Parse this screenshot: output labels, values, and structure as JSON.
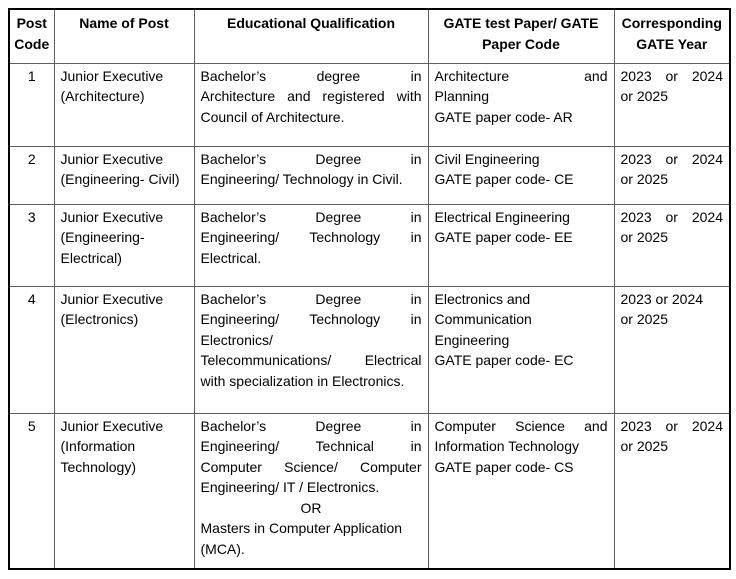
{
  "colors": {
    "border_inner": "#5f5f5f",
    "border_outer": "#000000",
    "text": "#000000",
    "background": "#ffffff"
  },
  "table": {
    "headers": [
      "Post Code",
      "Name of Post",
      "Educational Qualification",
      "GATE test Paper/ GATE Paper Code",
      "Corresponding GATE Year"
    ],
    "rows": [
      {
        "code": "1",
        "name": [
          {
            "t": "Junior Executive"
          },
          {
            "t": "(Architecture)"
          }
        ],
        "qualification": [
          {
            "t": "Bachelor’s degree in",
            "j": true
          },
          {
            "t": "Architecture and registered with",
            "j": true
          },
          {
            "t": "Council of Architecture."
          }
        ],
        "gate": [
          {
            "t": "Architecture and",
            "j": true
          },
          {
            "t": "Planning"
          },
          {
            "t": "GATE paper code- AR"
          }
        ],
        "year": [
          {
            "t": "2023 or 2024",
            "j": true
          },
          {
            "t": "or 2025"
          }
        ]
      },
      {
        "code": "2",
        "name": [
          {
            "t": "Junior Executive"
          },
          {
            "t": "(Engineering- Civil)"
          }
        ],
        "qualification": [
          {
            "t": "Bachelor’s Degree in",
            "j": true
          },
          {
            "t": "Engineering/ Technology in Civil."
          }
        ],
        "gate": [
          {
            "t": "Civil Engineering"
          },
          {
            "t": "GATE paper code- CE"
          }
        ],
        "year": [
          {
            "t": "2023 or 2024",
            "j": true
          },
          {
            "t": "or 2025"
          }
        ]
      },
      {
        "code": "3",
        "name": [
          {
            "t": "Junior Executive"
          },
          {
            "t": "(Engineering-"
          },
          {
            "t": "Electrical)"
          }
        ],
        "qualification": [
          {
            "t": "Bachelor’s Degree in",
            "j": true
          },
          {
            "t": "Engineering/ Technology in",
            "j": true
          },
          {
            "t": "Electrical."
          }
        ],
        "gate": [
          {
            "t": "Electrical Engineering"
          },
          {
            "t": "GATE paper code- EE"
          }
        ],
        "year": [
          {
            "t": "2023 or 2024",
            "j": true
          },
          {
            "t": "or 2025"
          }
        ]
      },
      {
        "code": "4",
        "name": [
          {
            "t": "Junior Executive"
          },
          {
            "t": "(Electronics)"
          }
        ],
        "qualification": [
          {
            "t": "Bachelor’s Degree in",
            "j": true
          },
          {
            "t": "Engineering/ Technology in",
            "j": true
          },
          {
            "t": "Electronics/"
          },
          {
            "t": "Telecommunications/ Electrical",
            "j": true
          },
          {
            "t": "with specialization in Electronics."
          }
        ],
        "gate": [
          {
            "t": "Electronics and"
          },
          {
            "t": "Communication"
          },
          {
            "t": "Engineering"
          },
          {
            "t": "GATE paper code- EC"
          }
        ],
        "year": [
          {
            "t": "2023 or 2024"
          },
          {
            "t": "or 2025"
          }
        ]
      },
      {
        "code": "5",
        "name": [
          {
            "t": "Junior Executive"
          },
          {
            "t": "(Information"
          },
          {
            "t": "Technology)"
          }
        ],
        "qualification": [
          {
            "t": "Bachelor’s Degree in",
            "j": true
          },
          {
            "t": "Engineering/ Technical in",
            "j": true
          },
          {
            "t": "Computer Science/ Computer",
            "j": true
          },
          {
            "t": "Engineering/ IT / Electronics."
          },
          {
            "t": "OR",
            "c": true
          },
          {
            "t": "Masters in Computer Application"
          },
          {
            "t": "(MCA)."
          }
        ],
        "gate": [
          {
            "t": "Computer Science and",
            "j": true
          },
          {
            "t": "Information Technology"
          },
          {
            "t": "GATE paper code- CS"
          }
        ],
        "year": [
          {
            "t": "2023 or 2024",
            "j": true
          },
          {
            "t": "or 2025"
          }
        ]
      }
    ]
  }
}
